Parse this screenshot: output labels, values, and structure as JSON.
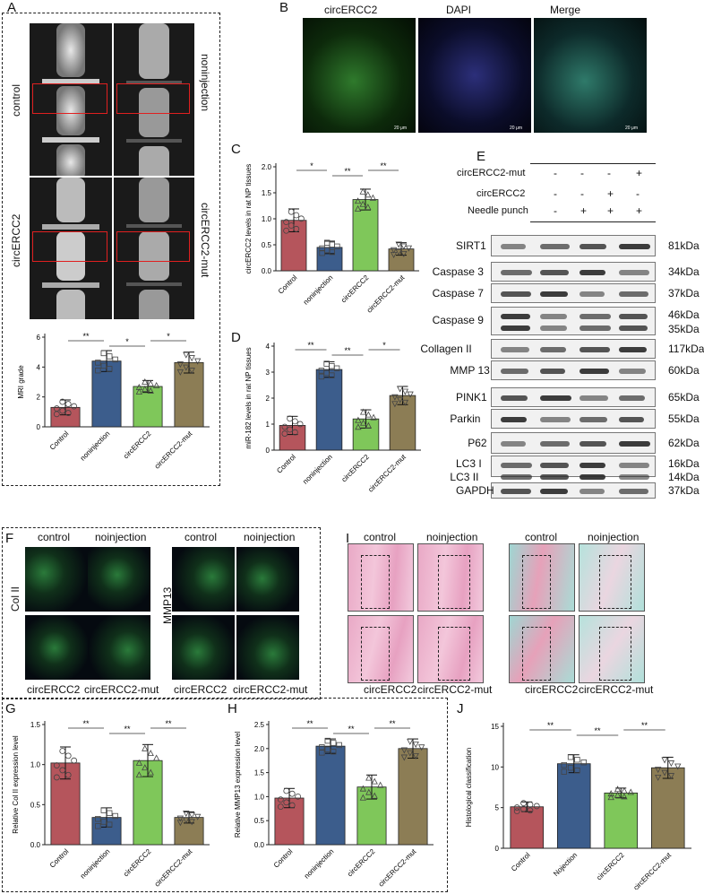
{
  "panels": {
    "A": "A",
    "B": "B",
    "C": "C",
    "D": "D",
    "E": "E",
    "F": "F",
    "G": "G",
    "H": "H",
    "I": "I",
    "J": "J"
  },
  "panelA": {
    "row_labels": [
      "control",
      "circERCC2"
    ],
    "col_labels": [
      "noninjection",
      "circERCC2-mut"
    ]
  },
  "panelB": {
    "titles": [
      "circERCC2",
      "DAPI",
      "Merge"
    ],
    "scale": "20 μm"
  },
  "panelE": {
    "conditions": [
      {
        "label": "circERCC2-mut",
        "values": [
          "-",
          "-",
          "-",
          "+"
        ]
      },
      {
        "label": "circERCC2",
        "values": [
          "-",
          "-",
          "+",
          "-"
        ]
      },
      {
        "label": "Needle punch",
        "values": [
          "-",
          "+",
          "+",
          "+"
        ]
      }
    ],
    "blots": [
      {
        "name": "SIRT1",
        "kda": [
          "81kDa"
        ]
      },
      {
        "name": "Caspase 3",
        "kda": [
          "34kDa"
        ]
      },
      {
        "name": "Caspase 7",
        "kda": [
          "37kDa"
        ]
      },
      {
        "name": "Caspase 9",
        "kda": [
          "46kDa",
          "35kDa"
        ]
      },
      {
        "name": "Collagen II",
        "kda": [
          "117kDa"
        ]
      },
      {
        "name": "MMP 13",
        "kda": [
          "60kDa"
        ]
      },
      {
        "name": "PINK1",
        "kda": [
          "65kDa"
        ]
      },
      {
        "name": "Parkin",
        "kda": [
          "55kDa"
        ]
      },
      {
        "name": "P62",
        "kda": [
          "62kDa"
        ]
      },
      {
        "name": "LC3 I",
        "kda": [
          "16kDa"
        ]
      },
      {
        "name": "LC3 II",
        "kda": [
          "14kDa"
        ]
      },
      {
        "name": "GAPDH",
        "kda": [
          "37kDa"
        ]
      }
    ]
  },
  "panelF": {
    "top_labels": [
      "control",
      "noinjection",
      "control",
      "noinjection"
    ],
    "bottom_labels": [
      "circERCC2",
      "circERCC2-mut",
      "circERCC2",
      "circERCC2-mut"
    ],
    "side_labels": [
      "Col II",
      "MMP13"
    ]
  },
  "panelI": {
    "top_labels": [
      "control",
      "noinjection",
      "control",
      "noinjection"
    ],
    "bottom_labels": [
      "circERCC2",
      "circERCC2-mut",
      "circERCC2",
      "circERCC2-mut"
    ]
  },
  "colors": {
    "control": "#b5555c",
    "noninjection": "#3c5d8c",
    "circERCC2": "#7fc75a",
    "circERCC2_mut": "#8c7d55"
  },
  "chart_data": [
    {
      "id": "A",
      "type": "bar",
      "categories": [
        "Control",
        "noninjection",
        "circERCC2",
        "circERCC2-mut"
      ],
      "values": [
        1.3,
        4.4,
        2.7,
        4.3
      ],
      "errors": [
        0.5,
        0.7,
        0.4,
        0.7
      ],
      "ylabel": "MRI grade",
      "ylim": [
        0,
        6
      ],
      "yticks": [
        0,
        2,
        4,
        6
      ],
      "significance": [
        {
          "pair": [
            0,
            1
          ],
          "label": "**"
        },
        {
          "pair": [
            1,
            2
          ],
          "label": "*"
        },
        {
          "pair": [
            2,
            3
          ],
          "label": "*"
        }
      ]
    },
    {
      "id": "C",
      "type": "bar",
      "categories": [
        "Control",
        "noninjection",
        "circERCC2",
        "circERCC2-mut"
      ],
      "values": [
        0.97,
        0.45,
        1.37,
        0.42
      ],
      "errors": [
        0.22,
        0.12,
        0.2,
        0.12
      ],
      "ylabel": "circERCC2 levels in rat NP tissues",
      "ylim": [
        0,
        2.0
      ],
      "yticks": [
        0.0,
        0.5,
        1.0,
        1.5,
        2.0
      ],
      "significance": [
        {
          "pair": [
            0,
            1
          ],
          "label": "*"
        },
        {
          "pair": [
            1,
            2
          ],
          "label": "**"
        },
        {
          "pair": [
            2,
            3
          ],
          "label": "**"
        }
      ]
    },
    {
      "id": "D",
      "type": "bar",
      "categories": [
        "Control",
        "noninjection",
        "circERCC2",
        "circERCC2-mut"
      ],
      "values": [
        0.95,
        3.1,
        1.2,
        2.1
      ],
      "errors": [
        0.35,
        0.3,
        0.35,
        0.35
      ],
      "ylabel": "miR-182 levels in rat NP tissues",
      "ylim": [
        0,
        4
      ],
      "yticks": [
        0,
        1,
        2,
        3,
        4
      ],
      "significance": [
        {
          "pair": [
            0,
            1
          ],
          "label": "**"
        },
        {
          "pair": [
            1,
            2
          ],
          "label": "**"
        },
        {
          "pair": [
            2,
            3
          ],
          "label": "*"
        }
      ]
    },
    {
      "id": "G",
      "type": "bar",
      "categories": [
        "Control",
        "noninjection",
        "circERCC2",
        "circERCC2-mut"
      ],
      "values": [
        1.02,
        0.34,
        1.05,
        0.34
      ],
      "errors": [
        0.2,
        0.12,
        0.2,
        0.07
      ],
      "ylabel": "Relative Col II expression level",
      "ylim": [
        0,
        1.5
      ],
      "yticks": [
        0.0,
        0.5,
        1.0,
        1.5
      ],
      "significance": [
        {
          "pair": [
            0,
            1
          ],
          "label": "**"
        },
        {
          "pair": [
            1,
            2
          ],
          "label": "**"
        },
        {
          "pair": [
            2,
            3
          ],
          "label": "**"
        }
      ]
    },
    {
      "id": "H",
      "type": "bar",
      "categories": [
        "Control",
        "noninjection",
        "circERCC2",
        "circERCC2-mut"
      ],
      "values": [
        0.97,
        2.05,
        1.2,
        2.0
      ],
      "errors": [
        0.2,
        0.15,
        0.25,
        0.2
      ],
      "ylabel": "Relative MMP13 expression level",
      "ylim": [
        0,
        2.5
      ],
      "yticks": [
        0.0,
        0.5,
        1.0,
        1.5,
        2.0,
        2.5
      ],
      "significance": [
        {
          "pair": [
            0,
            1
          ],
          "label": "**"
        },
        {
          "pair": [
            1,
            2
          ],
          "label": "**"
        },
        {
          "pair": [
            2,
            3
          ],
          "label": "**"
        }
      ]
    },
    {
      "id": "J",
      "type": "bar",
      "categories": [
        "Control",
        "Nojection",
        "circERCC2",
        "circERCC2-mut"
      ],
      "values": [
        5.1,
        10.4,
        6.8,
        9.9
      ],
      "errors": [
        0.6,
        1.1,
        0.6,
        1.3
      ],
      "ylabel": "Histological classification",
      "ylim": [
        0,
        15
      ],
      "yticks": [
        0,
        5,
        10,
        15
      ],
      "significance": [
        {
          "pair": [
            0,
            1
          ],
          "label": "**"
        },
        {
          "pair": [
            1,
            2
          ],
          "label": "**"
        },
        {
          "pair": [
            2,
            3
          ],
          "label": "**"
        }
      ]
    }
  ]
}
